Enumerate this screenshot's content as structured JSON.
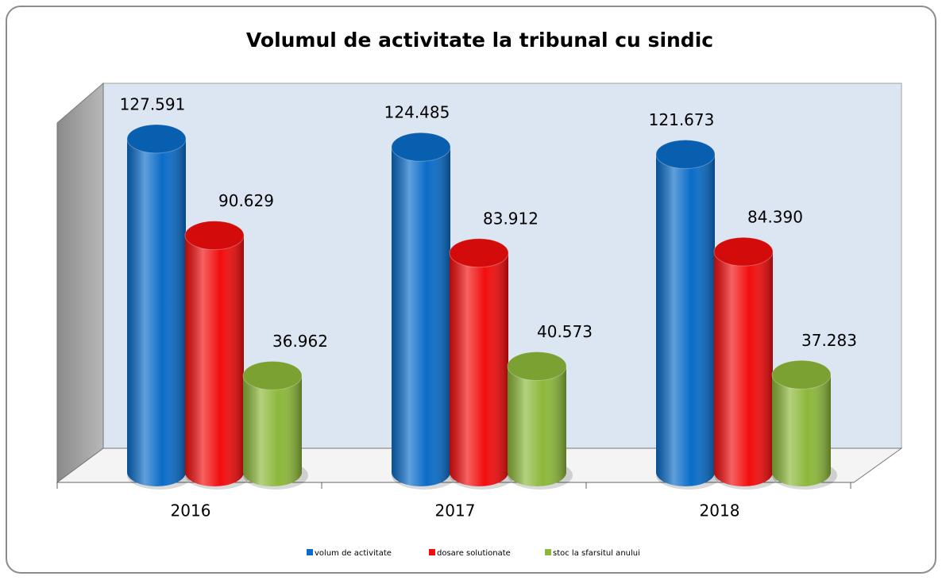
{
  "chart_data": {
    "type": "bar3d",
    "title": "Volumul de activitate la tribunal cu sindic",
    "categories": [
      "2016",
      "2017",
      "2018"
    ],
    "series": [
      {
        "name": "volum de activitate",
        "color": "#0a6cc8",
        "values": [
          127591,
          124485,
          121673
        ],
        "value_labels": [
          "127.591",
          "124.485",
          "121.673"
        ]
      },
      {
        "name": "dosare solutionate",
        "color": "#f20d0d",
        "values": [
          90629,
          83912,
          84390
        ],
        "value_labels": [
          "90.629",
          "83.912",
          "84.390"
        ]
      },
      {
        "name": "stoc la sfarsitul anului",
        "color": "#8cb83a",
        "values": [
          36962,
          40573,
          37283
        ],
        "value_labels": [
          "36.962",
          "40.573",
          "37.283"
        ]
      }
    ],
    "legend": "bottom"
  }
}
